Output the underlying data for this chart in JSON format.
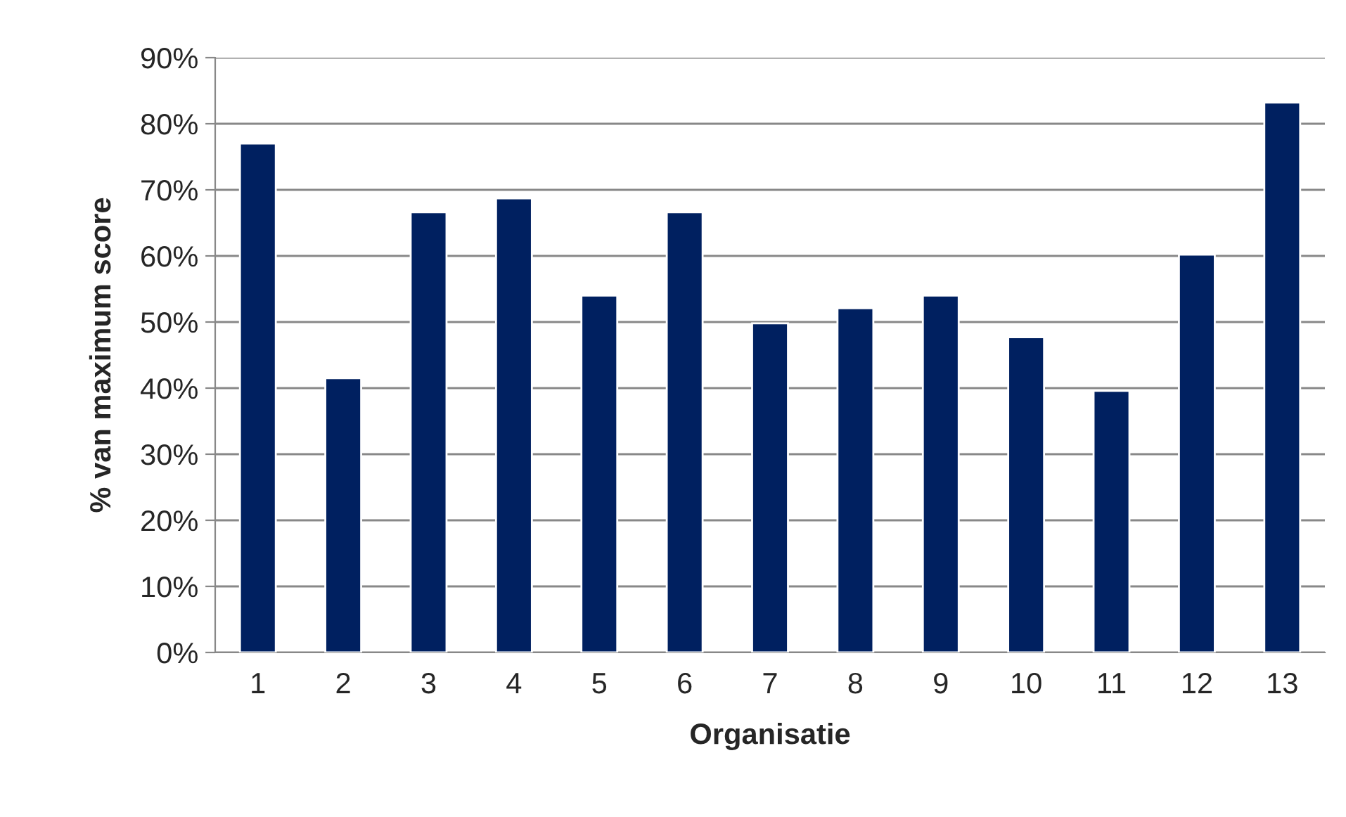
{
  "chart_data": {
    "type": "bar",
    "xlabel": "Organisatie",
    "ylabel": "% van maximum score",
    "categories": [
      "1",
      "2",
      "3",
      "4",
      "5",
      "6",
      "7",
      "8",
      "9",
      "10",
      "11",
      "12",
      "13"
    ],
    "values": [
      77.0,
      41.5,
      66.6,
      68.7,
      54.0,
      66.6,
      49.8,
      52.1,
      54.0,
      47.7,
      39.6,
      60.2,
      83.2
    ],
    "color": "#002060",
    "ylim": [
      0,
      90
    ],
    "yticks": [
      {
        "value": 0,
        "label": "0%"
      },
      {
        "value": 10,
        "label": "10%"
      },
      {
        "value": 20,
        "label": "20%"
      },
      {
        "value": 30,
        "label": "30%"
      },
      {
        "value": 40,
        "label": "40%"
      },
      {
        "value": 50,
        "label": "50%"
      },
      {
        "value": 60,
        "label": "60%"
      },
      {
        "value": 70,
        "label": "70%"
      },
      {
        "value": 80,
        "label": "80%"
      },
      {
        "value": 90,
        "label": "90%"
      }
    ],
    "grid": "y",
    "legend": false
  }
}
